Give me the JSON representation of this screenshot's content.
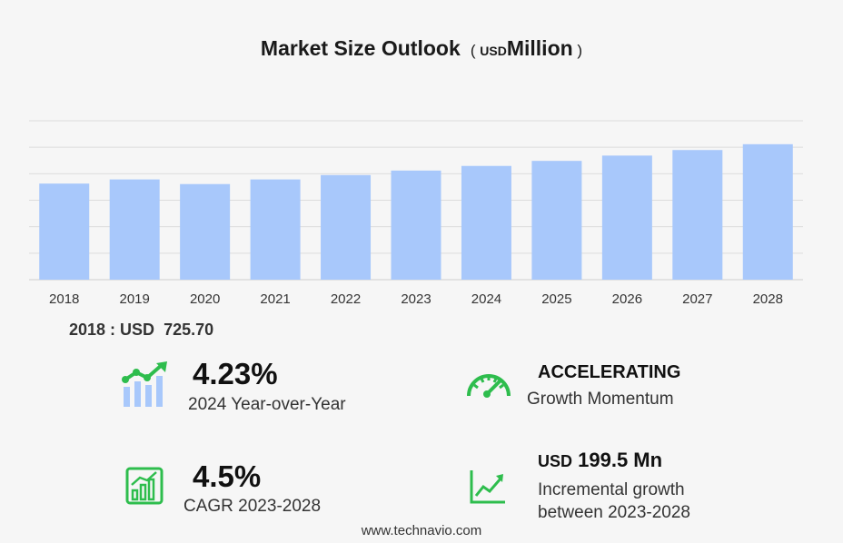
{
  "title": {
    "main": "Market Size Outlook",
    "open_paren": "(",
    "unit": "USD",
    "unit_word": "Million",
    "close_paren": ")"
  },
  "base": {
    "label": "2018 : USD",
    "value": "725.70"
  },
  "kpis": {
    "yoy": {
      "value": "4.23%",
      "label": "2024 Year-over-Year",
      "icon": "growth-chart-icon"
    },
    "momentum": {
      "value": "ACCELERATING",
      "label": "Growth Momentum",
      "icon": "speedometer-icon"
    },
    "cagr": {
      "value": "4.5%",
      "label": "CAGR 2023-2028",
      "icon": "bar-growth-icon"
    },
    "incremental": {
      "currency": "USD",
      "value": "199.5 Mn",
      "label_line1": "Incremental growth",
      "label_line2": "between 2023-2028",
      "icon": "trend-line-icon"
    }
  },
  "footer": "www.technavio.com",
  "colors": {
    "bar": "#a8c8fb",
    "icon_green": "#2ebd4d",
    "icon_blue": "#a8c8fb",
    "grid": "#dcdcdc"
  },
  "chart_data": {
    "type": "bar",
    "title": "Market Size Outlook (USD Million)",
    "categories": [
      "2018",
      "2019",
      "2020",
      "2021",
      "2022",
      "2023",
      "2024",
      "2025",
      "2026",
      "2027",
      "2028"
    ],
    "values": [
      725.7,
      757,
      722,
      757,
      790,
      824,
      859,
      897,
      937,
      979,
      1023
    ],
    "ylim": [
      0,
      1200
    ],
    "grid": true,
    "y_tick_labels_visible": false
  }
}
